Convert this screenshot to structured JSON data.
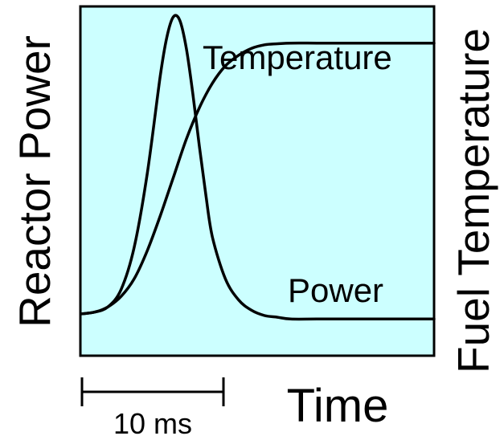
{
  "chart_data": {
    "type": "line",
    "title": "",
    "xlabel": "Time",
    "ylabel_left": "Reactor Power",
    "ylabel_right": "Fuel Temperature",
    "scale_bar": {
      "label": "10 ms",
      "length_ms": 10
    },
    "xlim": [
      0,
      27
    ],
    "ylim": [
      0,
      1
    ],
    "plot_background": "#ccffff",
    "line_color": "#000000",
    "grid": false,
    "series": [
      {
        "name": "Power",
        "x": [
          0,
          1,
          2,
          3,
          4,
          5,
          6,
          6.5,
          7,
          7.5,
          8,
          8.5,
          9,
          9.5,
          10,
          11,
          12,
          13,
          14,
          15,
          16,
          18,
          20,
          22,
          24,
          27
        ],
        "y": [
          0.12,
          0.125,
          0.14,
          0.19,
          0.31,
          0.52,
          0.8,
          0.91,
          0.97,
          0.96,
          0.88,
          0.75,
          0.6,
          0.46,
          0.34,
          0.22,
          0.16,
          0.13,
          0.115,
          0.11,
          0.105,
          0.105,
          0.105,
          0.105,
          0.105,
          0.105
        ]
      },
      {
        "name": "Temperature",
        "x": [
          0,
          1,
          2,
          3,
          4,
          5,
          6,
          7,
          8,
          9,
          10,
          11,
          12,
          13,
          14,
          15,
          16,
          18,
          20,
          22,
          24,
          27
        ],
        "y": [
          0.12,
          0.125,
          0.14,
          0.17,
          0.22,
          0.3,
          0.4,
          0.51,
          0.62,
          0.71,
          0.78,
          0.83,
          0.86,
          0.88,
          0.89,
          0.893,
          0.895,
          0.895,
          0.895,
          0.895,
          0.895,
          0.895
        ]
      }
    ],
    "annotations": [
      {
        "text": "Temperature",
        "series": "Temperature"
      },
      {
        "text": "Power",
        "series": "Power"
      }
    ]
  }
}
